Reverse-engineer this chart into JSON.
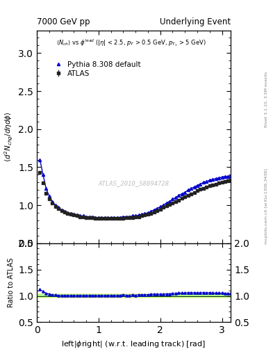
{
  "title_left": "7000 GeV pp",
  "title_right": "Underlying Event",
  "right_label_top": "Rivet 3.1.10, 3.5M events",
  "right_label_bottom": "mcplots.cern.ch [arXiv:1306.3436]",
  "watermark": "ATLAS_2010_S8894728",
  "xlabel": "left|$\\phi$right| (w.r.t. leading track) [rad]",
  "ylabel": "$\\langle d^2 N_{chg}/d\\eta d\\phi \\rangle$",
  "ratio_ylabel": "Ratio to ATLAS",
  "xlim": [
    0.0,
    3.14159
  ],
  "ylim_main": [
    0.5,
    3.3
  ],
  "ylim_ratio": [
    0.5,
    2.0
  ],
  "yticks_main": [
    0.5,
    1.0,
    1.5,
    2.0,
    2.5,
    3.0
  ],
  "yticks_ratio": [
    0.5,
    1.0,
    1.5,
    2.0
  ],
  "xticks": [
    0,
    1,
    2,
    3
  ],
  "data_x": [
    0.05,
    0.1,
    0.15,
    0.2,
    0.25,
    0.3,
    0.35,
    0.4,
    0.45,
    0.5,
    0.55,
    0.6,
    0.65,
    0.7,
    0.75,
    0.8,
    0.85,
    0.9,
    0.95,
    1.0,
    1.05,
    1.1,
    1.15,
    1.2,
    1.25,
    1.3,
    1.35,
    1.4,
    1.45,
    1.5,
    1.55,
    1.6,
    1.65,
    1.7,
    1.75,
    1.8,
    1.85,
    1.9,
    1.95,
    2.0,
    2.05,
    2.1,
    2.15,
    2.2,
    2.25,
    2.3,
    2.35,
    2.4,
    2.45,
    2.5,
    2.55,
    2.6,
    2.65,
    2.7,
    2.75,
    2.8,
    2.85,
    2.9,
    2.95,
    3.0,
    3.05,
    3.1,
    3.14
  ],
  "data_y_atlas": [
    1.43,
    1.29,
    1.16,
    1.08,
    1.03,
    0.98,
    0.96,
    0.93,
    0.91,
    0.89,
    0.88,
    0.87,
    0.86,
    0.85,
    0.85,
    0.84,
    0.84,
    0.84,
    0.83,
    0.83,
    0.83,
    0.83,
    0.83,
    0.83,
    0.83,
    0.83,
    0.83,
    0.83,
    0.84,
    0.84,
    0.84,
    0.85,
    0.85,
    0.86,
    0.87,
    0.88,
    0.89,
    0.91,
    0.93,
    0.95,
    0.97,
    0.99,
    1.01,
    1.03,
    1.05,
    1.07,
    1.09,
    1.11,
    1.13,
    1.15,
    1.17,
    1.19,
    1.21,
    1.22,
    1.24,
    1.26,
    1.27,
    1.28,
    1.29,
    1.3,
    1.31,
    1.32,
    1.33
  ],
  "data_y_pythia": [
    1.6,
    1.4,
    1.22,
    1.12,
    1.05,
    1.0,
    0.97,
    0.94,
    0.92,
    0.9,
    0.89,
    0.88,
    0.87,
    0.86,
    0.86,
    0.85,
    0.85,
    0.85,
    0.84,
    0.84,
    0.84,
    0.84,
    0.84,
    0.84,
    0.84,
    0.84,
    0.84,
    0.85,
    0.85,
    0.85,
    0.86,
    0.86,
    0.87,
    0.88,
    0.89,
    0.9,
    0.92,
    0.94,
    0.96,
    0.98,
    1.0,
    1.03,
    1.05,
    1.08,
    1.1,
    1.13,
    1.15,
    1.17,
    1.2,
    1.22,
    1.24,
    1.26,
    1.28,
    1.3,
    1.31,
    1.33,
    1.34,
    1.35,
    1.36,
    1.37,
    1.38,
    1.38,
    1.39
  ],
  "ratio_y_pythia": [
    1.12,
    1.085,
    1.052,
    1.037,
    1.019,
    1.02,
    1.01,
    1.011,
    1.011,
    1.011,
    1.011,
    1.011,
    1.012,
    1.012,
    1.012,
    1.012,
    1.012,
    1.012,
    1.012,
    1.012,
    1.012,
    1.012,
    1.012,
    1.012,
    1.012,
    1.012,
    1.012,
    1.024,
    1.012,
    1.012,
    1.024,
    1.012,
    1.024,
    1.023,
    1.023,
    1.023,
    1.034,
    1.033,
    1.032,
    1.032,
    1.031,
    1.04,
    1.04,
    1.049,
    1.048,
    1.056,
    1.055,
    1.054,
    1.062,
    1.061,
    1.06,
    1.059,
    1.058,
    1.066,
    1.056,
    1.063,
    1.055,
    1.055,
    1.054,
    1.054,
    1.053,
    1.045,
    1.045
  ],
  "atlas_color": "#222222",
  "pythia_color": "#0000cc",
  "band_yellow": "#ffffaa",
  "band_green": "#aaff88",
  "legend_atlas": "ATLAS",
  "legend_pythia": "Pythia 8.308 default"
}
